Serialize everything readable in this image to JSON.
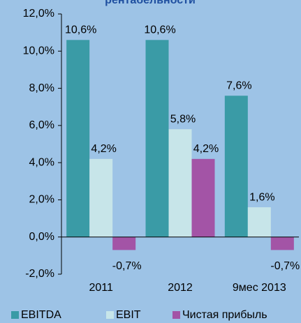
{
  "chart_data": {
    "type": "bar",
    "title": "рентабельности",
    "categories": [
      "2011",
      "2012",
      "9мес 2013"
    ],
    "series": [
      {
        "name": "EBITDA",
        "color": "#3a9ba6",
        "values": [
          10.6,
          10.6,
          7.6
        ],
        "value_labels": [
          "10,6%",
          "10,6%",
          "7,6%"
        ]
      },
      {
        "name": "EBIT",
        "color": "#c7e5e9",
        "values": [
          4.2,
          5.8,
          1.6
        ],
        "value_labels": [
          "4,2%",
          "5,8%",
          "1,6%"
        ]
      },
      {
        "name": "Чистая прибыль",
        "color": "#a354a6",
        "values": [
          -0.7,
          4.2,
          -0.7
        ],
        "value_labels": [
          "-0,7%",
          "4,2%",
          "-0,7%"
        ]
      }
    ],
    "ylim": [
      -2,
      12
    ],
    "yticks": [
      {
        "value": -2,
        "label": "-2,0%"
      },
      {
        "value": 0,
        "label": "0,0%"
      },
      {
        "value": 2,
        "label": "2,0%"
      },
      {
        "value": 4,
        "label": "4,0%"
      },
      {
        "value": 6,
        "label": "6,0%"
      },
      {
        "value": 8,
        "label": "8,0%"
      },
      {
        "value": 10,
        "label": "10,0%"
      },
      {
        "value": 12,
        "label": "12,0%"
      }
    ],
    "legend": "bottom"
  }
}
